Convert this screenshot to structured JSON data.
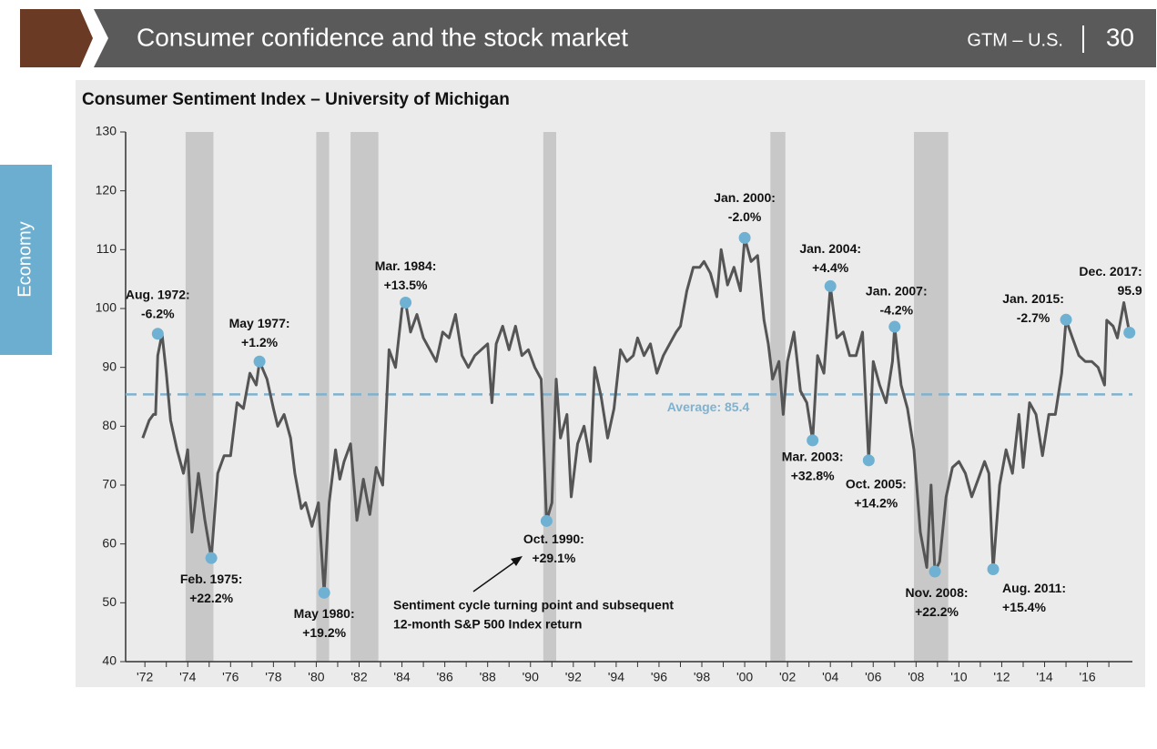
{
  "header": {
    "title": "Consumer confidence and the stock market",
    "section": "GTM – U.S.",
    "page": "30",
    "tab": "Economy"
  },
  "chart_data": {
    "type": "line",
    "title": "Consumer Sentiment Index – University of Michigan",
    "xlim": [
      1971.1,
      2018.1
    ],
    "ylim": [
      40,
      130
    ],
    "yticks": [
      40,
      50,
      60,
      70,
      80,
      90,
      100,
      110,
      120,
      130
    ],
    "xticks": [
      {
        "value": 1972,
        "label": "'72"
      },
      {
        "value": 1974,
        "label": "'74"
      },
      {
        "value": 1976,
        "label": "'76"
      },
      {
        "value": 1978,
        "label": "'78"
      },
      {
        "value": 1980,
        "label": "'80"
      },
      {
        "value": 1982,
        "label": "'82"
      },
      {
        "value": 1984,
        "label": "'84"
      },
      {
        "value": 1986,
        "label": "'86"
      },
      {
        "value": 1988,
        "label": "'88"
      },
      {
        "value": 1990,
        "label": "'90"
      },
      {
        "value": 1992,
        "label": "'92"
      },
      {
        "value": 1994,
        "label": "'94"
      },
      {
        "value": 1996,
        "label": "'96"
      },
      {
        "value": 1998,
        "label": "'98"
      },
      {
        "value": 2000,
        "label": "'00"
      },
      {
        "value": 2002,
        "label": "'02"
      },
      {
        "value": 2004,
        "label": "'04"
      },
      {
        "value": 2006,
        "label": "'06"
      },
      {
        "value": 2008,
        "label": "'08"
      },
      {
        "value": 2010,
        "label": "'10"
      },
      {
        "value": 2012,
        "label": "'12"
      },
      {
        "value": 2014,
        "label": "'14"
      },
      {
        "value": 2016,
        "label": "'16"
      }
    ],
    "recessions": [
      [
        1973.9,
        1975.2
      ],
      [
        1980.0,
        1980.6
      ],
      [
        1981.6,
        1982.9
      ],
      [
        1990.6,
        1991.2
      ],
      [
        2001.2,
        2001.9
      ],
      [
        2007.9,
        2009.5
      ]
    ],
    "recession_color": "#c8c8c8",
    "average": {
      "value": 85.4,
      "label": "Average: 85.4",
      "color": "#7fb2cf"
    },
    "marker_color": "#6fb1d2",
    "series": [
      {
        "name": "Consumer Sentiment Index",
        "color": "#555555",
        "x": [
          1971.9,
          1972.2,
          1972.4,
          1972.5,
          1972.6,
          1972.8,
          1973.0,
          1973.2,
          1973.5,
          1973.8,
          1974.0,
          1974.2,
          1974.5,
          1974.8,
          1975.1,
          1975.4,
          1975.7,
          1976.0,
          1976.3,
          1976.6,
          1976.9,
          1977.2,
          1977.35,
          1977.7,
          1978.0,
          1978.2,
          1978.5,
          1978.8,
          1979.0,
          1979.3,
          1979.5,
          1979.8,
          1980.1,
          1980.37,
          1980.6,
          1980.9,
          1981.1,
          1981.3,
          1981.6,
          1981.9,
          1982.2,
          1982.5,
          1982.8,
          1983.1,
          1983.4,
          1983.7,
          1984.0,
          1984.17,
          1984.4,
          1984.7,
          1985.0,
          1985.3,
          1985.6,
          1985.9,
          1986.2,
          1986.5,
          1986.8,
          1987.1,
          1987.4,
          1987.7,
          1988.0,
          1988.2,
          1988.4,
          1988.7,
          1989.0,
          1989.3,
          1989.6,
          1989.9,
          1990.2,
          1990.5,
          1990.75,
          1991.0,
          1991.2,
          1991.4,
          1991.7,
          1991.9,
          1992.2,
          1992.5,
          1992.8,
          1993.0,
          1993.3,
          1993.6,
          1993.9,
          1994.2,
          1994.5,
          1994.8,
          1995.0,
          1995.3,
          1995.6,
          1995.9,
          1996.2,
          1996.5,
          1996.8,
          1997.0,
          1997.3,
          1997.6,
          1997.9,
          1998.1,
          1998.4,
          1998.7,
          1998.9,
          1999.2,
          1999.5,
          1999.8,
          2000.0,
          2000.3,
          2000.6,
          2000.9,
          2001.1,
          2001.3,
          2001.6,
          2001.8,
          2002.0,
          2002.3,
          2002.6,
          2002.9,
          2003.17,
          2003.4,
          2003.7,
          2004.0,
          2004.3,
          2004.6,
          2004.9,
          2005.2,
          2005.5,
          2005.79,
          2006.0,
          2006.3,
          2006.6,
          2006.9,
          2007.0,
          2007.3,
          2007.6,
          2007.9,
          2008.2,
          2008.5,
          2008.7,
          2008.88,
          2009.1,
          2009.4,
          2009.7,
          2010.0,
          2010.3,
          2010.6,
          2010.9,
          2011.2,
          2011.4,
          2011.6,
          2011.9,
          2012.2,
          2012.5,
          2012.8,
          2013.0,
          2013.3,
          2013.6,
          2013.9,
          2014.2,
          2014.5,
          2014.8,
          2015.0,
          2015.3,
          2015.6,
          2015.9,
          2016.2,
          2016.5,
          2016.8,
          2016.9,
          2017.2,
          2017.4,
          2017.7,
          2017.96
        ],
        "values": [
          78,
          81,
          82,
          82,
          92,
          95.7,
          89,
          81,
          76,
          72,
          76,
          62,
          72,
          64,
          57.6,
          72,
          75,
          75,
          84,
          83,
          89,
          87,
          91,
          88,
          83,
          80,
          82,
          78,
          72,
          66,
          67,
          63,
          67,
          51.7,
          67,
          76,
          71,
          74,
          77,
          64,
          71,
          65,
          73,
          70,
          93,
          90,
          100,
          101,
          96,
          99,
          95,
          93,
          91,
          96,
          95,
          99,
          92,
          90,
          92,
          93,
          94,
          84,
          94,
          97,
          93,
          97,
          92,
          93,
          90,
          88,
          63.9,
          67,
          88,
          78,
          82,
          68,
          77,
          80,
          74,
          90,
          85,
          78,
          83,
          93,
          91,
          92,
          95,
          92,
          94,
          89,
          92,
          94,
          96,
          97,
          103,
          107,
          107,
          108,
          106,
          102,
          110,
          104,
          107,
          103,
          112,
          108,
          109,
          98,
          94,
          88,
          91,
          82,
          91,
          96,
          86,
          84,
          77.6,
          92,
          89,
          103.8,
          95,
          96,
          92,
          92,
          96,
          74.2,
          91,
          87,
          84,
          91,
          96.9,
          87,
          83,
          76,
          62,
          56,
          70,
          55.3,
          57,
          68,
          73,
          74,
          72,
          68,
          71,
          74,
          72,
          55.7,
          70,
          76,
          72,
          82,
          73,
          84,
          82,
          75,
          82,
          82,
          89,
          98.1,
          95,
          92,
          91,
          91,
          90,
          87,
          98,
          97,
          95,
          101,
          95.9
        ]
      }
    ],
    "annotations": [
      {
        "x": 1972.6,
        "y": 95.7,
        "lines": [
          "Aug. 1972:",
          "-6.2%"
        ]
      },
      {
        "x": 1975.1,
        "y": 57.6,
        "lines": [
          "Feb. 1975:",
          "+22.2%"
        ]
      },
      {
        "x": 1977.35,
        "y": 91,
        "lines": [
          "May 1977:",
          "+1.2%"
        ]
      },
      {
        "x": 1980.37,
        "y": 51.7,
        "lines": [
          "May 1980:",
          "+19.2%"
        ]
      },
      {
        "x": 1984.17,
        "y": 101,
        "lines": [
          "Mar. 1984:",
          "+13.5%"
        ]
      },
      {
        "x": 1990.75,
        "y": 63.9,
        "lines": [
          "Oct. 1990:",
          "+29.1%"
        ]
      },
      {
        "x": 2000.0,
        "y": 112,
        "lines": [
          "Jan. 2000:",
          "-2.0%"
        ]
      },
      {
        "x": 2003.17,
        "y": 77.6,
        "lines": [
          "Mar. 2003:",
          "+32.8%"
        ]
      },
      {
        "x": 2004.0,
        "y": 103.8,
        "lines": [
          "Jan. 2004:",
          "+4.4%"
        ]
      },
      {
        "x": 2005.79,
        "y": 74.2,
        "lines": [
          "Oct. 2005:",
          "+14.2%"
        ]
      },
      {
        "x": 2007.0,
        "y": 96.9,
        "lines": [
          "Jan. 2007:",
          "-4.2%"
        ]
      },
      {
        "x": 2008.88,
        "y": 55.3,
        "lines": [
          "Nov. 2008:",
          "+22.2%"
        ]
      },
      {
        "x": 2011.6,
        "y": 55.7,
        "lines": [
          "Aug. 2011:",
          "+15.4%"
        ]
      },
      {
        "x": 2015.0,
        "y": 98.1,
        "lines": [
          "Jan. 2015:",
          "-2.7%"
        ]
      },
      {
        "x": 2017.96,
        "y": 95.9,
        "lines": [
          "Dec. 2017:",
          "95.9"
        ]
      }
    ],
    "note": [
      "Sentiment cycle turning point and subsequent",
      "12-month S&P 500 Index return"
    ]
  }
}
